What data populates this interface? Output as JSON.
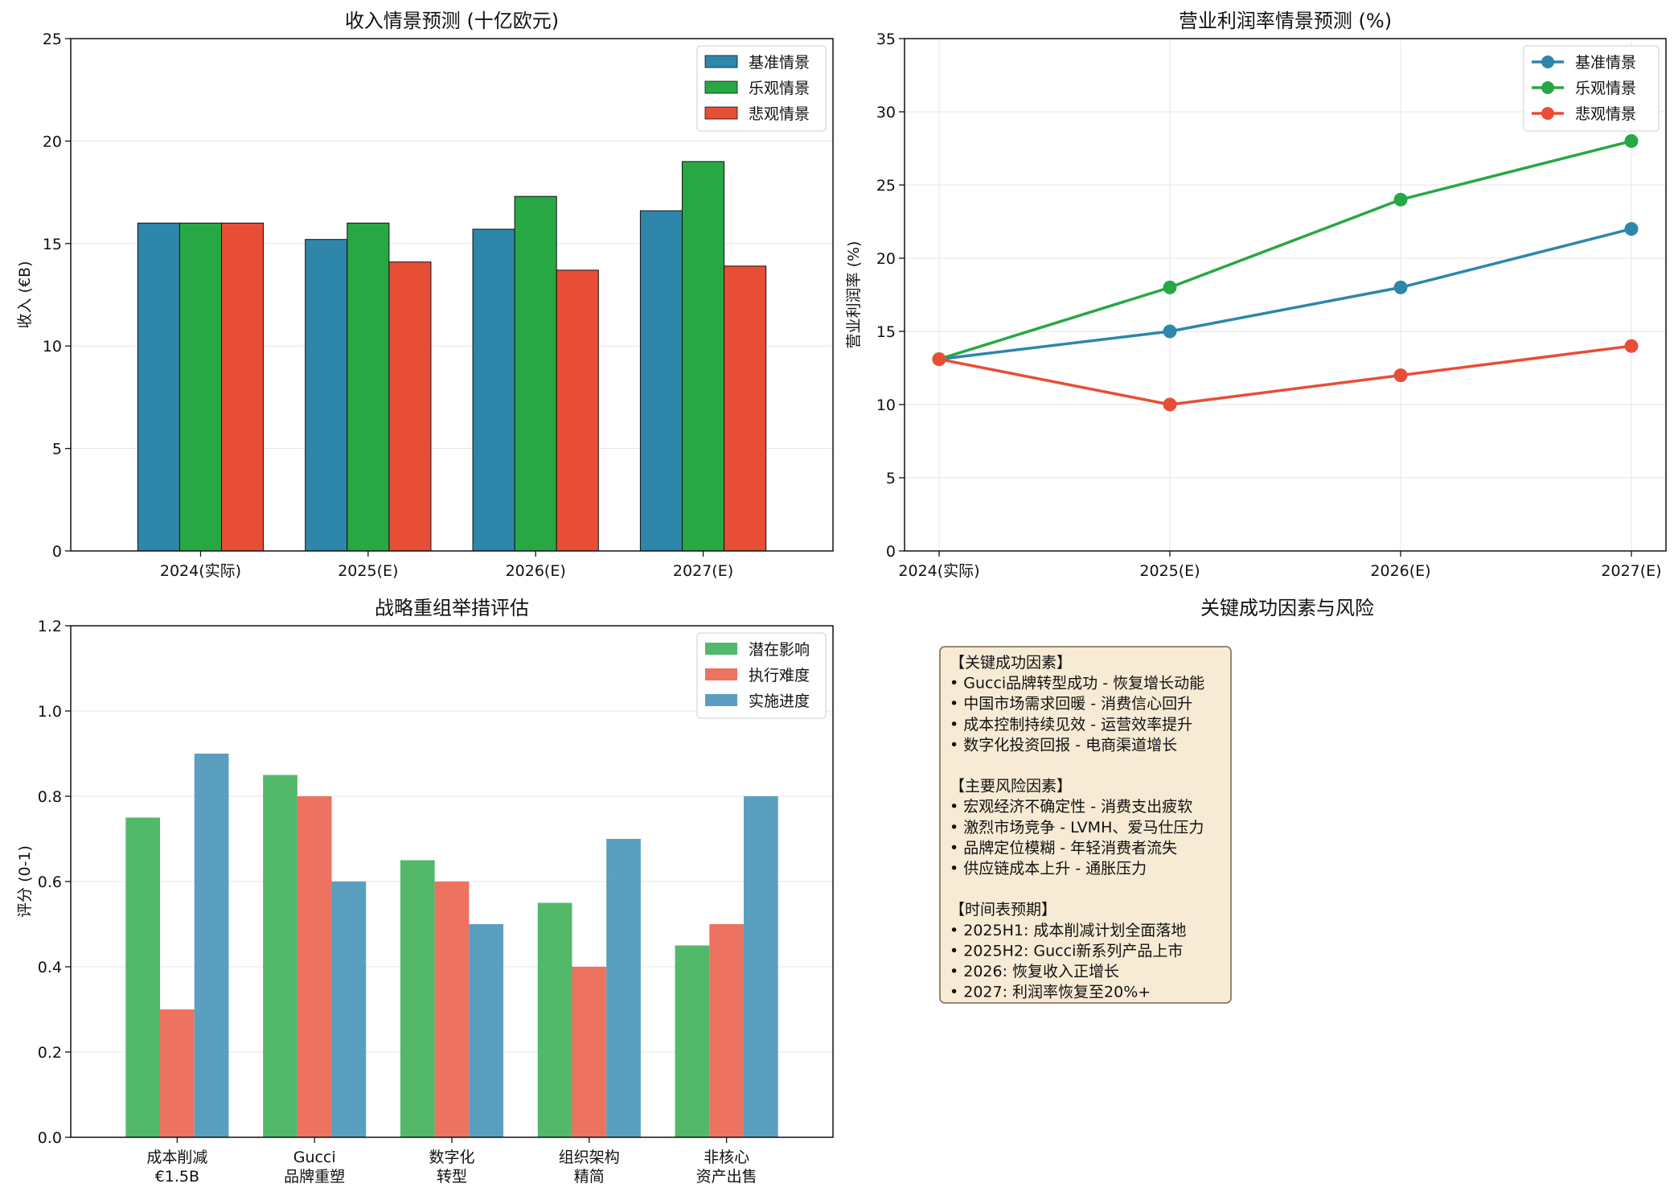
{
  "chart_data": [
    {
      "type": "bar",
      "title": "收入情景预测 (十亿欧元)",
      "xlabel": "",
      "ylabel": "收入 (€B)",
      "ylim": [
        0,
        25
      ],
      "yticks": [
        "0",
        "5",
        "10",
        "15",
        "20",
        "25"
      ],
      "categories": [
        "2024(实际)",
        "2025(E)",
        "2026(E)",
        "2027(E)"
      ],
      "series": [
        {
          "name": "基准情景",
          "color": "#2e86ab",
          "values": [
            16.0,
            15.2,
            15.7,
            16.6
          ]
        },
        {
          "name": "乐观情景",
          "color": "#28a745",
          "values": [
            16.0,
            16.0,
            17.3,
            19.0
          ]
        },
        {
          "name": "悲观情景",
          "color": "#e84d36",
          "values": [
            16.0,
            14.1,
            13.7,
            13.9
          ]
        }
      ],
      "legend": "top-right",
      "grid": "y"
    },
    {
      "type": "line",
      "title": "营业利润率情景预测 (%)",
      "xlabel": "",
      "ylabel": "营业利润率 (%)",
      "ylim": [
        0,
        35
      ],
      "yticks": [
        "0",
        "5",
        "10",
        "15",
        "20",
        "25",
        "30",
        "35"
      ],
      "categories": [
        "2024(实际)",
        "2025(E)",
        "2026(E)",
        "2027(E)"
      ],
      "series": [
        {
          "name": "基准情景",
          "color": "#2e86ab",
          "values": [
            13.1,
            15.0,
            18.0,
            22.0
          ]
        },
        {
          "name": "乐观情景",
          "color": "#28a745",
          "values": [
            13.1,
            18.0,
            24.0,
            28.0
          ]
        },
        {
          "name": "悲观情景",
          "color": "#e84d36",
          "values": [
            13.1,
            10.0,
            12.0,
            14.0
          ]
        }
      ],
      "legend": "top-right",
      "grid": "both"
    },
    {
      "type": "bar",
      "title": "战略重组举措评估",
      "xlabel": "",
      "ylabel": "评分 (0-1)",
      "ylim": [
        0,
        1.2
      ],
      "yticks": [
        "0.0",
        "0.2",
        "0.4",
        "0.6",
        "0.8",
        "1.0",
        "1.2"
      ],
      "categories": [
        [
          "成本削减",
          "€1.5B"
        ],
        [
          "Gucci",
          "品牌重塑"
        ],
        [
          "数字化",
          "转型"
        ],
        [
          "组织架构",
          "精简"
        ],
        [
          "非核心",
          "资产出售"
        ]
      ],
      "series": [
        {
          "name": "潜在影响",
          "color": "#52b86a",
          "values": [
            0.75,
            0.85,
            0.65,
            0.55,
            0.45
          ]
        },
        {
          "name": "执行难度",
          "color": "#ed7260",
          "values": [
            0.3,
            0.8,
            0.6,
            0.4,
            0.5
          ]
        },
        {
          "name": "实施进度",
          "color": "#5a9fbf",
          "values": [
            0.9,
            0.6,
            0.5,
            0.7,
            0.8
          ]
        }
      ],
      "legend": "top-right",
      "grid": "y"
    }
  ],
  "notes_panel": {
    "title": "关键成功因素与风险",
    "lines": [
      "【关键成功因素】",
      "• Gucci品牌转型成功 - 恢复增长动能",
      "• 中国市场需求回暖 - 消费信心回升",
      "• 成本控制持续见效 - 运营效率提升",
      "• 数字化投资回报 - 电商渠道增长",
      "",
      "【主要风险因素】",
      "• 宏观经济不确定性 - 消费支出疲软",
      "• 激烈市场竞争 - LVMH、爱马仕压力",
      "• 品牌定位模糊 - 年轻消费者流失",
      "• 供应链成本上升 - 通胀压力",
      "",
      "【时间表预期】",
      "• 2025H1: 成本削减计划全面落地",
      "• 2025H2: Gucci新系列产品上市",
      "• 2026: 恢复收入正增长",
      "• 2027: 利润率恢复至20%+"
    ],
    "box_fill": "#f7ebd5",
    "box_border": "#8a7a66"
  }
}
